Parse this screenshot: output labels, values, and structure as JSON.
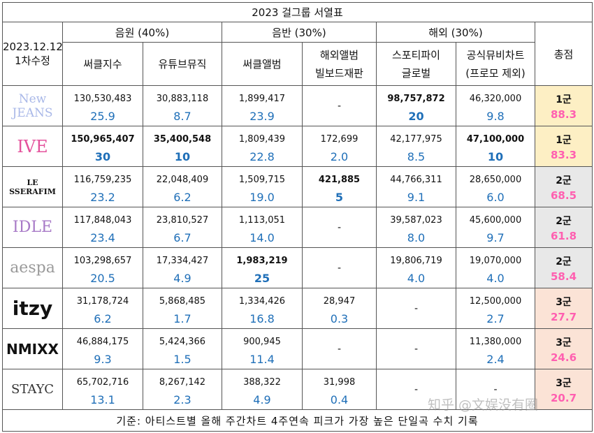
{
  "title": "2023 걸그룹 서열표",
  "date_note": {
    "line1": "2023.12.12",
    "line2": "1차수정"
  },
  "sections": {
    "streaming": "음원 (40%)",
    "album": "음반 (30%)",
    "overseas": "해외 (30%)"
  },
  "columns": {
    "circle_index": "써클지수",
    "youtube_music": "유튜브뮤직",
    "circle_album": "써클앨범",
    "overseas_album_l1": "해외앨범",
    "overseas_album_l2": "빌보드재판",
    "spotify_l1": "스포티파이",
    "spotify_l2": "글로벌",
    "mv_l1": "공식뮤비차트",
    "mv_l2": "(프로모 제외)"
  },
  "total_label": "총점",
  "rows": [
    {
      "group": "NewJeans",
      "logo_text": "New JEANS",
      "logo_color": "#a9b8e8",
      "row_bg": "#fdefc4",
      "circle_index": "130,530,483",
      "circle_index_score": "25.9",
      "youtube": "30,883,118",
      "youtube_score": "8.7",
      "circle_album": "1,899,417",
      "circle_album_score": "23.9",
      "overseas_album": "-",
      "overseas_album_score": "",
      "spotify": "98,757,872",
      "spotify_score": "20",
      "mv": "46,320,000",
      "mv_score": "9.8",
      "tier": "1군",
      "total": "88.3"
    },
    {
      "group": "IVE",
      "logo_text": "IVE",
      "logo_color": "#e4529c",
      "row_bg": "#fdefc4",
      "circle_index": "150,965,407",
      "circle_index_score": "30",
      "youtube": "35,400,548",
      "youtube_score": "10",
      "circle_album": "1,809,439",
      "circle_album_score": "22.8",
      "overseas_album": "172,699",
      "overseas_album_score": "2.0",
      "spotify": "42,177,975",
      "spotify_score": "8.5",
      "mv": "47,100,000",
      "mv_score": "10",
      "tier": "1군",
      "total": "83.3"
    },
    {
      "group": "LE SSERAFIM",
      "logo_text": "LE SSERAFIM",
      "logo_color": "#111111",
      "row_bg": "#e8e8e8",
      "circle_index": "116,759,235",
      "circle_index_score": "23.2",
      "youtube": "22,048,409",
      "youtube_score": "6.2",
      "circle_album": "1,509,715",
      "circle_album_score": "19.0",
      "overseas_album": "421,885",
      "overseas_album_score": "5",
      "spotify": "44,766,311",
      "spotify_score": "9.1",
      "mv": "28,650,000",
      "mv_score": "6.0",
      "tier": "2군",
      "total": "68.5"
    },
    {
      "group": "(G)I-DLE",
      "logo_text": "IDLE",
      "logo_color": "#a87ac7",
      "row_bg": "#e8e8e8",
      "circle_index": "117,848,043",
      "circle_index_score": "23.4",
      "youtube": "23,810,527",
      "youtube_score": "6.7",
      "circle_album": "1,113,051",
      "circle_album_score": "14.0",
      "overseas_album": "-",
      "overseas_album_score": "",
      "spotify": "39,587,023",
      "spotify_score": "8.0",
      "mv": "45,600,000",
      "mv_score": "9.7",
      "tier": "2군",
      "total": "61.8"
    },
    {
      "group": "aespa",
      "logo_text": "aespa",
      "logo_color": "#9a9a9a",
      "row_bg": "#e8e8e8",
      "circle_index": "103,298,657",
      "circle_index_score": "20.5",
      "youtube": "17,334,427",
      "youtube_score": "4.9",
      "circle_album": "1,983,219",
      "circle_album_score": "25",
      "overseas_album": "-",
      "overseas_album_score": "",
      "spotify": "19,806,719",
      "spotify_score": "4.0",
      "mv": "19,070,000",
      "mv_score": "4.0",
      "tier": "2군",
      "total": "58.4"
    },
    {
      "group": "ITZY",
      "logo_text": "itzy",
      "logo_color": "#111111",
      "row_bg": "#fbe3d6",
      "circle_index": "31,178,724",
      "circle_index_score": "6.2",
      "youtube": "5,868,485",
      "youtube_score": "1.7",
      "circle_album": "1,334,426",
      "circle_album_score": "16.8",
      "overseas_album": "28,947",
      "overseas_album_score": "0.3",
      "spotify": "-",
      "spotify_score": "",
      "mv": "12,500,000",
      "mv_score": "2.7",
      "tier": "3군",
      "total": "27.7"
    },
    {
      "group": "NMIXX",
      "logo_text": "NMIXX",
      "logo_color": "#111111",
      "row_bg": "#fbe3d6",
      "circle_index": "46,884,175",
      "circle_index_score": "9.3",
      "youtube": "5,424,366",
      "youtube_score": "1.5",
      "circle_album": "900,945",
      "circle_album_score": "11.4",
      "overseas_album": "-",
      "overseas_album_score": "",
      "spotify": "-",
      "spotify_score": "",
      "mv": "11,380,000",
      "mv_score": "2.4",
      "tier": "3군",
      "total": "24.6"
    },
    {
      "group": "STAYC",
      "logo_text": "STAYC",
      "logo_color": "#333333",
      "row_bg": "#fbe3d6",
      "circle_index": "65,702,716",
      "circle_index_score": "13.1",
      "youtube": "8,267,142",
      "youtube_score": "2.3",
      "circle_album": "388,322",
      "circle_album_score": "4.9",
      "overseas_album": "31,998",
      "overseas_album_score": "0.4",
      "spotify": "-",
      "spotify_score": "",
      "mv": "-",
      "mv_score": "",
      "tier": "3군",
      "total": "20.7"
    }
  ],
  "footnote": "기준: 아티스트별 올해 주간차트 4주연속 피크가 가장 높은 단일곡 수치 기록",
  "watermark": "知乎 @文娱没有圈"
}
